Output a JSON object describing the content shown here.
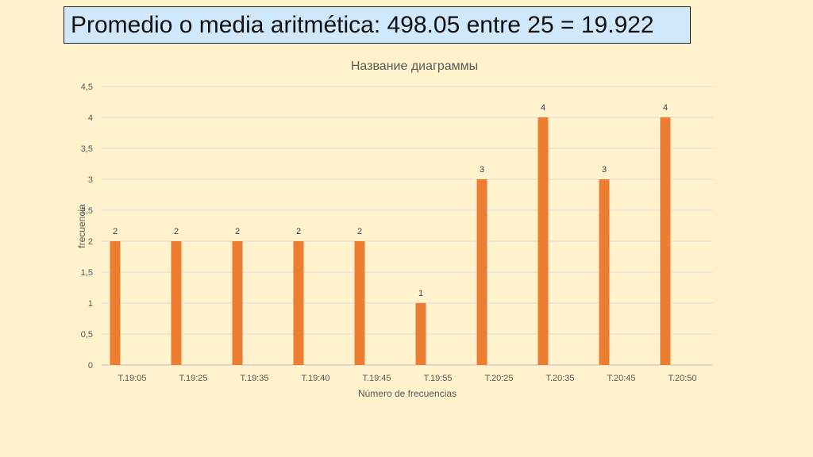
{
  "slide": {
    "title": "Promedio o media aritmética: 498.05 entre 25 = 19.922"
  },
  "colors": {
    "background": "#fff2cc",
    "title_box": "#cfe8fb",
    "bar": "#ed7d31",
    "grid": "#d9d9d9"
  },
  "chart_data": {
    "type": "bar",
    "title": "Название диаграммы",
    "xlabel": "Número de frecuencias",
    "ylabel": "frecuencia",
    "categories": [
      "T.19:05",
      "T.19:25",
      "T.19:35",
      "T.19:40",
      "T.19:45",
      "T.19:55",
      "T.20:25",
      "T.20:35",
      "T.20:45",
      "T.20:50"
    ],
    "values": [
      2,
      2,
      2,
      2,
      2,
      1,
      3,
      4,
      3,
      4
    ],
    "ylim": [
      0,
      4.5
    ],
    "yticks": [
      "0",
      "0,5",
      "1",
      "1,5",
      "2",
      "2,5",
      "3",
      "3,5",
      "4",
      "4,5"
    ],
    "data_labels": true,
    "grid": true,
    "legend": "none"
  }
}
